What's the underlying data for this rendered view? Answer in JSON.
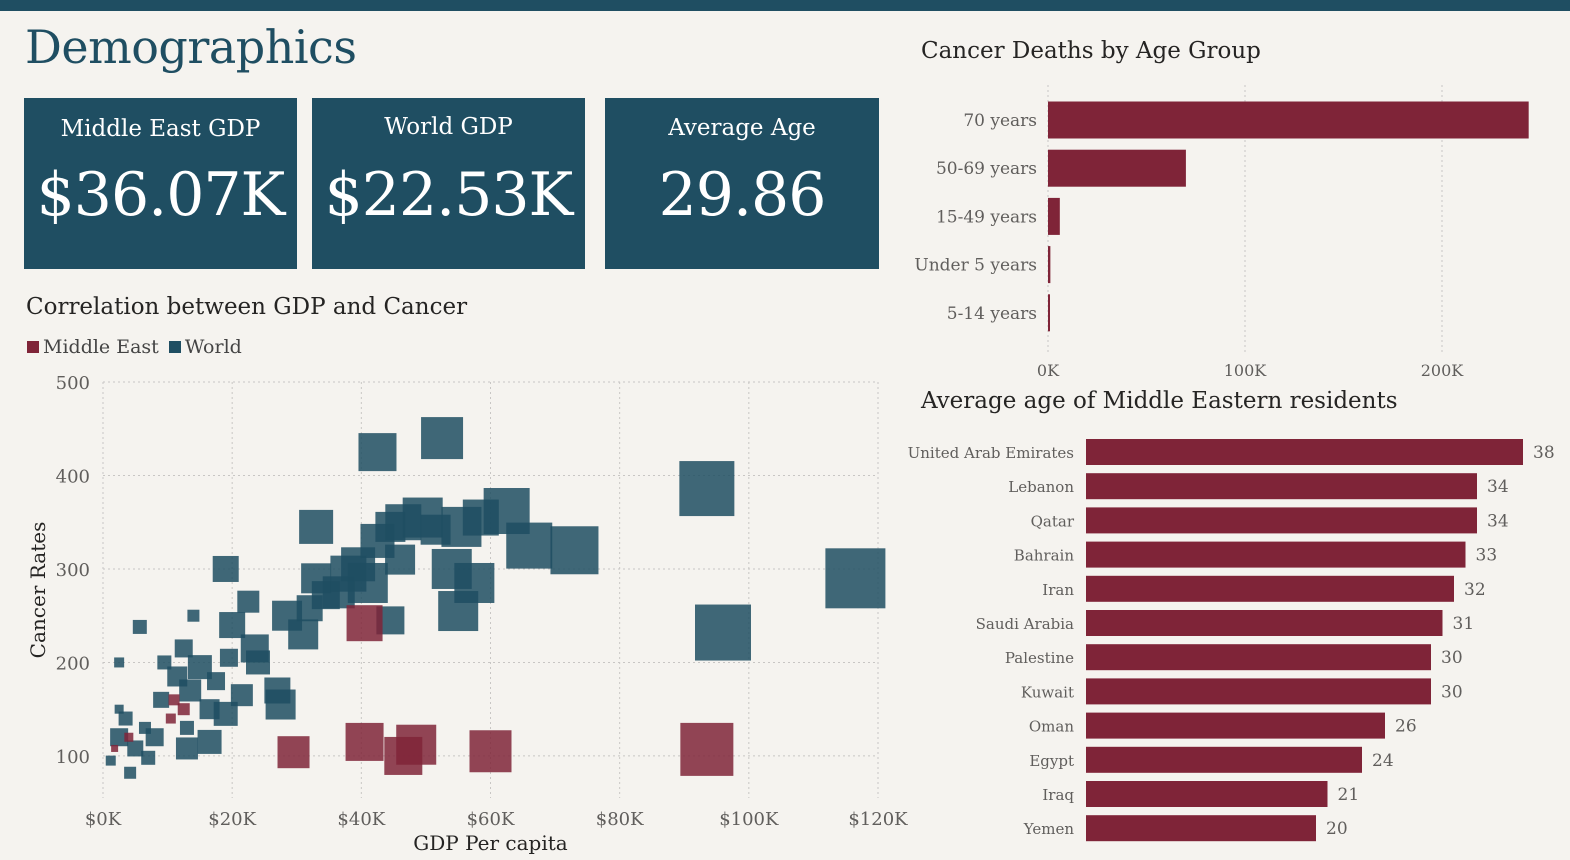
{
  "page": {
    "title": "Demographics"
  },
  "kpis": [
    {
      "label": "Middle East GDP",
      "value": "$36.07K"
    },
    {
      "label": "World GDP",
      "value": "$22.53K"
    },
    {
      "label": "Average Age",
      "value": "29.86"
    }
  ],
  "colors": {
    "middle_east": "#7f2438",
    "world": "#1f4e62",
    "header": "#1f4e62",
    "background": "#f5f3ef"
  },
  "chart_data": [
    {
      "type": "scatter",
      "title": "Correlation between GDP and Cancer",
      "xlabel": "GDP Per capita",
      "ylabel": "Cancer Rates",
      "xlim": [
        0,
        120000
      ],
      "ylim": [
        55,
        500
      ],
      "x_ticks": [
        "$0K",
        "$20K",
        "$40K",
        "$60K",
        "$80K",
        "$100K",
        "$120K"
      ],
      "x_tick_values": [
        0,
        20000,
        40000,
        60000,
        80000,
        100000,
        120000
      ],
      "y_ticks": [
        "100",
        "200",
        "300",
        "400",
        "500"
      ],
      "y_tick_values": [
        100,
        200,
        300,
        400,
        500
      ],
      "legend": "top-left",
      "series": [
        {
          "name": "Middle East",
          "color": "#7f2438",
          "points": [
            {
              "x": 1800,
              "y": 108,
              "s": 7
            },
            {
              "x": 11000,
              "y": 160,
              "s": 11
            },
            {
              "x": 10500,
              "y": 140,
              "s": 10
            },
            {
              "x": 12500,
              "y": 150,
              "s": 12
            },
            {
              "x": 4000,
              "y": 120,
              "s": 9
            },
            {
              "x": 29500,
              "y": 104,
              "s": 32
            },
            {
              "x": 40500,
              "y": 115,
              "s": 38
            },
            {
              "x": 46500,
              "y": 100,
              "s": 38
            },
            {
              "x": 48500,
              "y": 112,
              "s": 40
            },
            {
              "x": 60000,
              "y": 105,
              "s": 42
            },
            {
              "x": 93500,
              "y": 107,
              "s": 53
            },
            {
              "x": 40500,
              "y": 242,
              "s": 36
            }
          ]
        },
        {
          "name": "World",
          "color": "#1f4e62",
          "points": [
            {
              "x": 2500,
              "y": 120,
              "s": 18
            },
            {
              "x": 1200,
              "y": 95,
              "s": 10
            },
            {
              "x": 3500,
              "y": 140,
              "s": 14
            },
            {
              "x": 5000,
              "y": 108,
              "s": 16
            },
            {
              "x": 6500,
              "y": 130,
              "s": 12
            },
            {
              "x": 2500,
              "y": 150,
              "s": 9
            },
            {
              "x": 4200,
              "y": 82,
              "s": 12
            },
            {
              "x": 7000,
              "y": 98,
              "s": 14
            },
            {
              "x": 8000,
              "y": 120,
              "s": 18
            },
            {
              "x": 9000,
              "y": 160,
              "s": 16
            },
            {
              "x": 9500,
              "y": 200,
              "s": 14
            },
            {
              "x": 11500,
              "y": 185,
              "s": 20
            },
            {
              "x": 12500,
              "y": 215,
              "s": 18
            },
            {
              "x": 13500,
              "y": 170,
              "s": 22
            },
            {
              "x": 15000,
              "y": 195,
              "s": 24
            },
            {
              "x": 13000,
              "y": 130,
              "s": 14
            },
            {
              "x": 16500,
              "y": 150,
              "s": 20
            },
            {
              "x": 17500,
              "y": 180,
              "s": 18
            },
            {
              "x": 14000,
              "y": 250,
              "s": 12
            },
            {
              "x": 19000,
              "y": 145,
              "s": 24
            },
            {
              "x": 21500,
              "y": 165,
              "s": 22
            },
            {
              "x": 20000,
              "y": 240,
              "s": 26
            },
            {
              "x": 22500,
              "y": 265,
              "s": 22
            },
            {
              "x": 24000,
              "y": 200,
              "s": 24
            },
            {
              "x": 19500,
              "y": 205,
              "s": 18
            },
            {
              "x": 27000,
              "y": 170,
              "s": 26
            },
            {
              "x": 27500,
              "y": 155,
              "s": 30
            },
            {
              "x": 23500,
              "y": 215,
              "s": 28
            },
            {
              "x": 28500,
              "y": 250,
              "s": 30
            },
            {
              "x": 31000,
              "y": 230,
              "s": 30
            },
            {
              "x": 32000,
              "y": 258,
              "s": 26
            },
            {
              "x": 33000,
              "y": 290,
              "s": 30
            },
            {
              "x": 34500,
              "y": 272,
              "s": 28
            },
            {
              "x": 36500,
              "y": 275,
              "s": 32
            },
            {
              "x": 38000,
              "y": 295,
              "s": 36
            },
            {
              "x": 39500,
              "y": 305,
              "s": 34
            },
            {
              "x": 41000,
              "y": 285,
              "s": 40
            },
            {
              "x": 42500,
              "y": 330,
              "s": 34
            },
            {
              "x": 44500,
              "y": 345,
              "s": 30
            },
            {
              "x": 46000,
              "y": 310,
              "s": 30
            },
            {
              "x": 44500,
              "y": 245,
              "s": 28
            },
            {
              "x": 46500,
              "y": 350,
              "s": 36
            },
            {
              "x": 49500,
              "y": 355,
              "s": 40
            },
            {
              "x": 51500,
              "y": 342,
              "s": 30
            },
            {
              "x": 54000,
              "y": 300,
              "s": 40
            },
            {
              "x": 55500,
              "y": 345,
              "s": 40
            },
            {
              "x": 57500,
              "y": 285,
              "s": 40
            },
            {
              "x": 55000,
              "y": 255,
              "s": 40
            },
            {
              "x": 58500,
              "y": 355,
              "s": 36
            },
            {
              "x": 62500,
              "y": 362,
              "s": 46
            },
            {
              "x": 66000,
              "y": 325,
              "s": 46
            },
            {
              "x": 73000,
              "y": 320,
              "s": 48
            },
            {
              "x": 52500,
              "y": 440,
              "s": 42
            },
            {
              "x": 42500,
              "y": 425,
              "s": 38
            },
            {
              "x": 33000,
              "y": 345,
              "s": 34
            },
            {
              "x": 19000,
              "y": 300,
              "s": 26
            },
            {
              "x": 5700,
              "y": 238,
              "s": 14
            },
            {
              "x": 2500,
              "y": 200,
              "s": 10
            },
            {
              "x": 16500,
              "y": 115,
              "s": 24
            },
            {
              "x": 13000,
              "y": 108,
              "s": 22
            },
            {
              "x": 93500,
              "y": 386,
              "s": 55
            },
            {
              "x": 96000,
              "y": 232,
              "s": 56
            },
            {
              "x": 116500,
              "y": 290,
              "s": 60
            }
          ]
        }
      ]
    },
    {
      "type": "bar",
      "orientation": "horizontal",
      "title": "Cancer Deaths by Age Group",
      "categories": [
        "70 years",
        "50-69 years",
        "15-49 years",
        "Under 5 years",
        "5-14 years"
      ],
      "values": [
        244000,
        70000,
        6000,
        1200,
        700
      ],
      "x_ticks": [
        "0K",
        "100K",
        "200K"
      ],
      "x_tick_values": [
        0,
        100000,
        200000
      ],
      "xlim": [
        0,
        250000
      ],
      "color": "#7f2438"
    },
    {
      "type": "bar",
      "orientation": "horizontal",
      "title": "Average age of Middle Eastern residents",
      "categories": [
        "United Arab Emirates",
        "Lebanon",
        "Qatar",
        "Bahrain",
        "Iran",
        "Saudi Arabia",
        "Palestine",
        "Kuwait",
        "Oman",
        "Egypt",
        "Iraq",
        "Yemen"
      ],
      "values": [
        38,
        34,
        34,
        33,
        32,
        31,
        30,
        30,
        26,
        24,
        21,
        20
      ],
      "data_labels": [
        "38",
        "34",
        "34",
        "33",
        "32",
        "31",
        "30",
        "30",
        "26",
        "24",
        "21",
        "20"
      ],
      "xlim": [
        0,
        38
      ],
      "color": "#7f2438"
    }
  ]
}
